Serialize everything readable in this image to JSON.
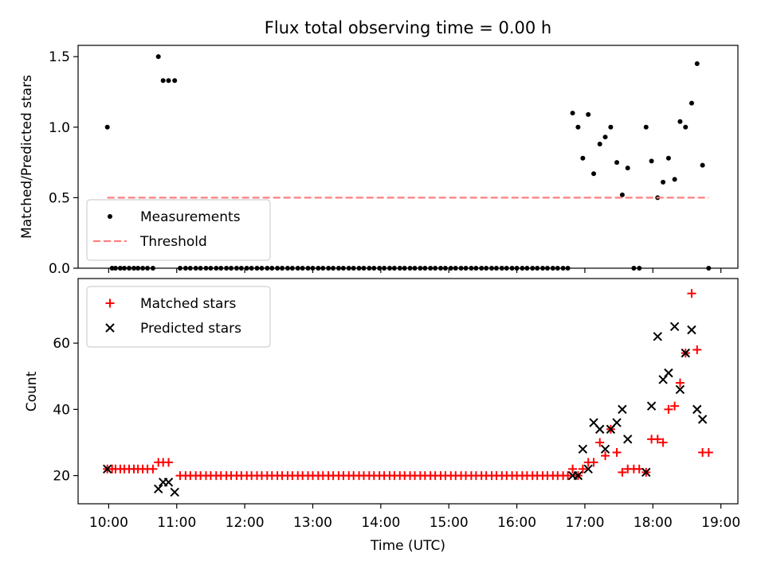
{
  "chart_data": [
    {
      "type": "scatter",
      "title": "Flux total observing time = 0.00 h",
      "ylabel": "Matched/Predicted stars",
      "xlabel": "",
      "ylim": [
        0,
        1.58
      ],
      "xlim": [
        9.55,
        19.25
      ],
      "yticks": [
        0.0,
        0.5,
        1.0,
        1.5
      ],
      "ytick_labels": [
        "0.0",
        "0.5",
        "1.0",
        "1.5"
      ],
      "legend_position": "lower-left",
      "series": [
        {
          "name": "Measurements",
          "marker": "dot",
          "color": "#000000",
          "points": [
            [
              9.98,
              1.0
            ],
            [
              10.05,
              0
            ],
            [
              10.1,
              0
            ],
            [
              10.17,
              0
            ],
            [
              10.23,
              0
            ],
            [
              10.3,
              0
            ],
            [
              10.37,
              0
            ],
            [
              10.43,
              0
            ],
            [
              10.5,
              0
            ],
            [
              10.57,
              0
            ],
            [
              10.65,
              0
            ],
            [
              10.73,
              1.5
            ],
            [
              10.8,
              1.33
            ],
            [
              10.88,
              1.33
            ],
            [
              10.97,
              1.33
            ],
            [
              11.05,
              0
            ],
            [
              11.13,
              0
            ],
            [
              11.2,
              0
            ],
            [
              11.28,
              0
            ],
            [
              11.35,
              0
            ],
            [
              11.43,
              0
            ],
            [
              11.5,
              0
            ],
            [
              11.58,
              0
            ],
            [
              11.65,
              0
            ],
            [
              11.73,
              0
            ],
            [
              11.8,
              0
            ],
            [
              11.88,
              0
            ],
            [
              11.95,
              0
            ],
            [
              12.03,
              0
            ],
            [
              12.1,
              0
            ],
            [
              12.18,
              0
            ],
            [
              12.25,
              0
            ],
            [
              12.33,
              0
            ],
            [
              12.4,
              0
            ],
            [
              12.48,
              0
            ],
            [
              12.55,
              0
            ],
            [
              12.63,
              0
            ],
            [
              12.7,
              0
            ],
            [
              12.78,
              0
            ],
            [
              12.85,
              0
            ],
            [
              12.93,
              0
            ],
            [
              13.0,
              0
            ],
            [
              13.08,
              0
            ],
            [
              13.15,
              0
            ],
            [
              13.23,
              0
            ],
            [
              13.3,
              0
            ],
            [
              13.38,
              0
            ],
            [
              13.45,
              0
            ],
            [
              13.53,
              0
            ],
            [
              13.6,
              0
            ],
            [
              13.68,
              0
            ],
            [
              13.75,
              0
            ],
            [
              13.83,
              0
            ],
            [
              13.9,
              0
            ],
            [
              13.98,
              0
            ],
            [
              14.05,
              0
            ],
            [
              14.13,
              0
            ],
            [
              14.2,
              0
            ],
            [
              14.28,
              0
            ],
            [
              14.35,
              0
            ],
            [
              14.43,
              0
            ],
            [
              14.5,
              0
            ],
            [
              14.58,
              0
            ],
            [
              14.65,
              0
            ],
            [
              14.73,
              0
            ],
            [
              14.8,
              0
            ],
            [
              14.88,
              0
            ],
            [
              14.95,
              0
            ],
            [
              15.03,
              0
            ],
            [
              15.1,
              0
            ],
            [
              15.18,
              0
            ],
            [
              15.25,
              0
            ],
            [
              15.33,
              0
            ],
            [
              15.4,
              0
            ],
            [
              15.48,
              0
            ],
            [
              15.55,
              0
            ],
            [
              15.63,
              0
            ],
            [
              15.7,
              0
            ],
            [
              15.78,
              0
            ],
            [
              15.85,
              0
            ],
            [
              15.93,
              0
            ],
            [
              16.0,
              0
            ],
            [
              16.08,
              0
            ],
            [
              16.15,
              0
            ],
            [
              16.23,
              0
            ],
            [
              16.3,
              0
            ],
            [
              16.38,
              0
            ],
            [
              16.45,
              0
            ],
            [
              16.53,
              0
            ],
            [
              16.6,
              0
            ],
            [
              16.68,
              0
            ],
            [
              16.75,
              0
            ],
            [
              16.82,
              1.1
            ],
            [
              16.9,
              1.0
            ],
            [
              16.97,
              0.78
            ],
            [
              17.05,
              1.09
            ],
            [
              17.13,
              0.67
            ],
            [
              17.22,
              0.88
            ],
            [
              17.3,
              0.93
            ],
            [
              17.38,
              1.0
            ],
            [
              17.47,
              0.75
            ],
            [
              17.55,
              0.52
            ],
            [
              17.63,
              0.71
            ],
            [
              17.72,
              0
            ],
            [
              17.8,
              0
            ],
            [
              17.9,
              1.0
            ],
            [
              17.98,
              0.76
            ],
            [
              18.07,
              0.5
            ],
            [
              18.15,
              0.61
            ],
            [
              18.23,
              0.78
            ],
            [
              18.32,
              0.63
            ],
            [
              18.4,
              1.04
            ],
            [
              18.48,
              1.0
            ],
            [
              18.57,
              1.17
            ],
            [
              18.65,
              1.45
            ],
            [
              18.73,
              0.73
            ],
            [
              18.82,
              0
            ]
          ]
        },
        {
          "name": "Threshold",
          "marker": "dashed-line",
          "color": "#ff7f7f",
          "points": [
            [
              9.98,
              0.5
            ],
            [
              18.82,
              0.5
            ]
          ]
        }
      ]
    },
    {
      "type": "scatter",
      "title": "",
      "ylabel": "Count",
      "xlabel": "Time (UTC)",
      "ylim": [
        11.5,
        79.5
      ],
      "xlim": [
        9.55,
        19.25
      ],
      "yticks": [
        20,
        40,
        60
      ],
      "ytick_labels": [
        "20",
        "40",
        "60"
      ],
      "xticks": [
        10,
        11,
        12,
        13,
        14,
        15,
        16,
        17,
        18,
        19
      ],
      "xtick_labels": [
        "10:00",
        "11:00",
        "12:00",
        "13:00",
        "14:00",
        "15:00",
        "16:00",
        "17:00",
        "18:00",
        "19:00"
      ],
      "legend_position": "upper-left",
      "series": [
        {
          "name": "Matched stars",
          "marker": "plus",
          "color": "#ff0000",
          "points": [
            [
              9.98,
              22
            ],
            [
              10.05,
              22
            ],
            [
              10.1,
              22
            ],
            [
              10.17,
              22
            ],
            [
              10.23,
              22
            ],
            [
              10.3,
              22
            ],
            [
              10.37,
              22
            ],
            [
              10.43,
              22
            ],
            [
              10.5,
              22
            ],
            [
              10.57,
              22
            ],
            [
              10.65,
              22
            ],
            [
              10.73,
              24
            ],
            [
              10.8,
              24
            ],
            [
              10.88,
              24
            ],
            [
              11.05,
              20
            ],
            [
              11.13,
              20
            ],
            [
              11.2,
              20
            ],
            [
              11.28,
              20
            ],
            [
              11.35,
              20
            ],
            [
              11.43,
              20
            ],
            [
              11.5,
              20
            ],
            [
              11.58,
              20
            ],
            [
              11.65,
              20
            ],
            [
              11.73,
              20
            ],
            [
              11.8,
              20
            ],
            [
              11.88,
              20
            ],
            [
              11.95,
              20
            ],
            [
              12.03,
              20
            ],
            [
              12.1,
              20
            ],
            [
              12.18,
              20
            ],
            [
              12.25,
              20
            ],
            [
              12.33,
              20
            ],
            [
              12.4,
              20
            ],
            [
              12.48,
              20
            ],
            [
              12.55,
              20
            ],
            [
              12.63,
              20
            ],
            [
              12.7,
              20
            ],
            [
              12.78,
              20
            ],
            [
              12.85,
              20
            ],
            [
              12.93,
              20
            ],
            [
              13.0,
              20
            ],
            [
              13.08,
              20
            ],
            [
              13.15,
              20
            ],
            [
              13.23,
              20
            ],
            [
              13.3,
              20
            ],
            [
              13.38,
              20
            ],
            [
              13.45,
              20
            ],
            [
              13.53,
              20
            ],
            [
              13.6,
              20
            ],
            [
              13.68,
              20
            ],
            [
              13.75,
              20
            ],
            [
              13.83,
              20
            ],
            [
              13.9,
              20
            ],
            [
              13.98,
              20
            ],
            [
              14.05,
              20
            ],
            [
              14.13,
              20
            ],
            [
              14.2,
              20
            ],
            [
              14.28,
              20
            ],
            [
              14.35,
              20
            ],
            [
              14.43,
              20
            ],
            [
              14.5,
              20
            ],
            [
              14.58,
              20
            ],
            [
              14.65,
              20
            ],
            [
              14.73,
              20
            ],
            [
              14.8,
              20
            ],
            [
              14.88,
              20
            ],
            [
              14.95,
              20
            ],
            [
              15.03,
              20
            ],
            [
              15.1,
              20
            ],
            [
              15.18,
              20
            ],
            [
              15.25,
              20
            ],
            [
              15.33,
              20
            ],
            [
              15.4,
              20
            ],
            [
              15.48,
              20
            ],
            [
              15.55,
              20
            ],
            [
              15.63,
              20
            ],
            [
              15.7,
              20
            ],
            [
              15.78,
              20
            ],
            [
              15.85,
              20
            ],
            [
              15.93,
              20
            ],
            [
              16.0,
              20
            ],
            [
              16.08,
              20
            ],
            [
              16.15,
              20
            ],
            [
              16.23,
              20
            ],
            [
              16.3,
              20
            ],
            [
              16.38,
              20
            ],
            [
              16.45,
              20
            ],
            [
              16.53,
              20
            ],
            [
              16.6,
              20
            ],
            [
              16.68,
              20
            ],
            [
              16.75,
              20
            ],
            [
              16.82,
              22
            ],
            [
              16.9,
              20
            ],
            [
              16.97,
              22
            ],
            [
              17.05,
              24
            ],
            [
              17.13,
              24
            ],
            [
              17.22,
              30
            ],
            [
              17.3,
              26
            ],
            [
              17.38,
              34
            ],
            [
              17.47,
              27
            ],
            [
              17.55,
              21
            ],
            [
              17.63,
              22
            ],
            [
              17.72,
              22
            ],
            [
              17.8,
              22
            ],
            [
              17.9,
              21
            ],
            [
              17.98,
              31
            ],
            [
              18.07,
              31
            ],
            [
              18.15,
              30
            ],
            [
              18.23,
              40
            ],
            [
              18.32,
              41
            ],
            [
              18.4,
              48
            ],
            [
              18.48,
              57
            ],
            [
              18.57,
              75
            ],
            [
              18.65,
              58
            ],
            [
              18.73,
              27
            ],
            [
              18.82,
              27
            ]
          ]
        },
        {
          "name": "Predicted stars",
          "marker": "x",
          "color": "#000000",
          "points": [
            [
              9.98,
              22
            ],
            [
              10.73,
              16
            ],
            [
              10.8,
              18
            ],
            [
              10.88,
              18
            ],
            [
              10.97,
              15
            ],
            [
              16.82,
              20
            ],
            [
              16.9,
              20
            ],
            [
              16.97,
              28
            ],
            [
              17.05,
              22
            ],
            [
              17.13,
              36
            ],
            [
              17.22,
              34
            ],
            [
              17.3,
              28
            ],
            [
              17.38,
              34
            ],
            [
              17.47,
              36
            ],
            [
              17.55,
              40
            ],
            [
              17.63,
              31
            ],
            [
              17.9,
              21
            ],
            [
              17.98,
              41
            ],
            [
              18.07,
              62
            ],
            [
              18.15,
              49
            ],
            [
              18.23,
              51
            ],
            [
              18.32,
              65
            ],
            [
              18.4,
              46
            ],
            [
              18.48,
              57
            ],
            [
              18.57,
              64
            ],
            [
              18.65,
              40
            ],
            [
              18.73,
              37
            ]
          ]
        }
      ]
    }
  ]
}
